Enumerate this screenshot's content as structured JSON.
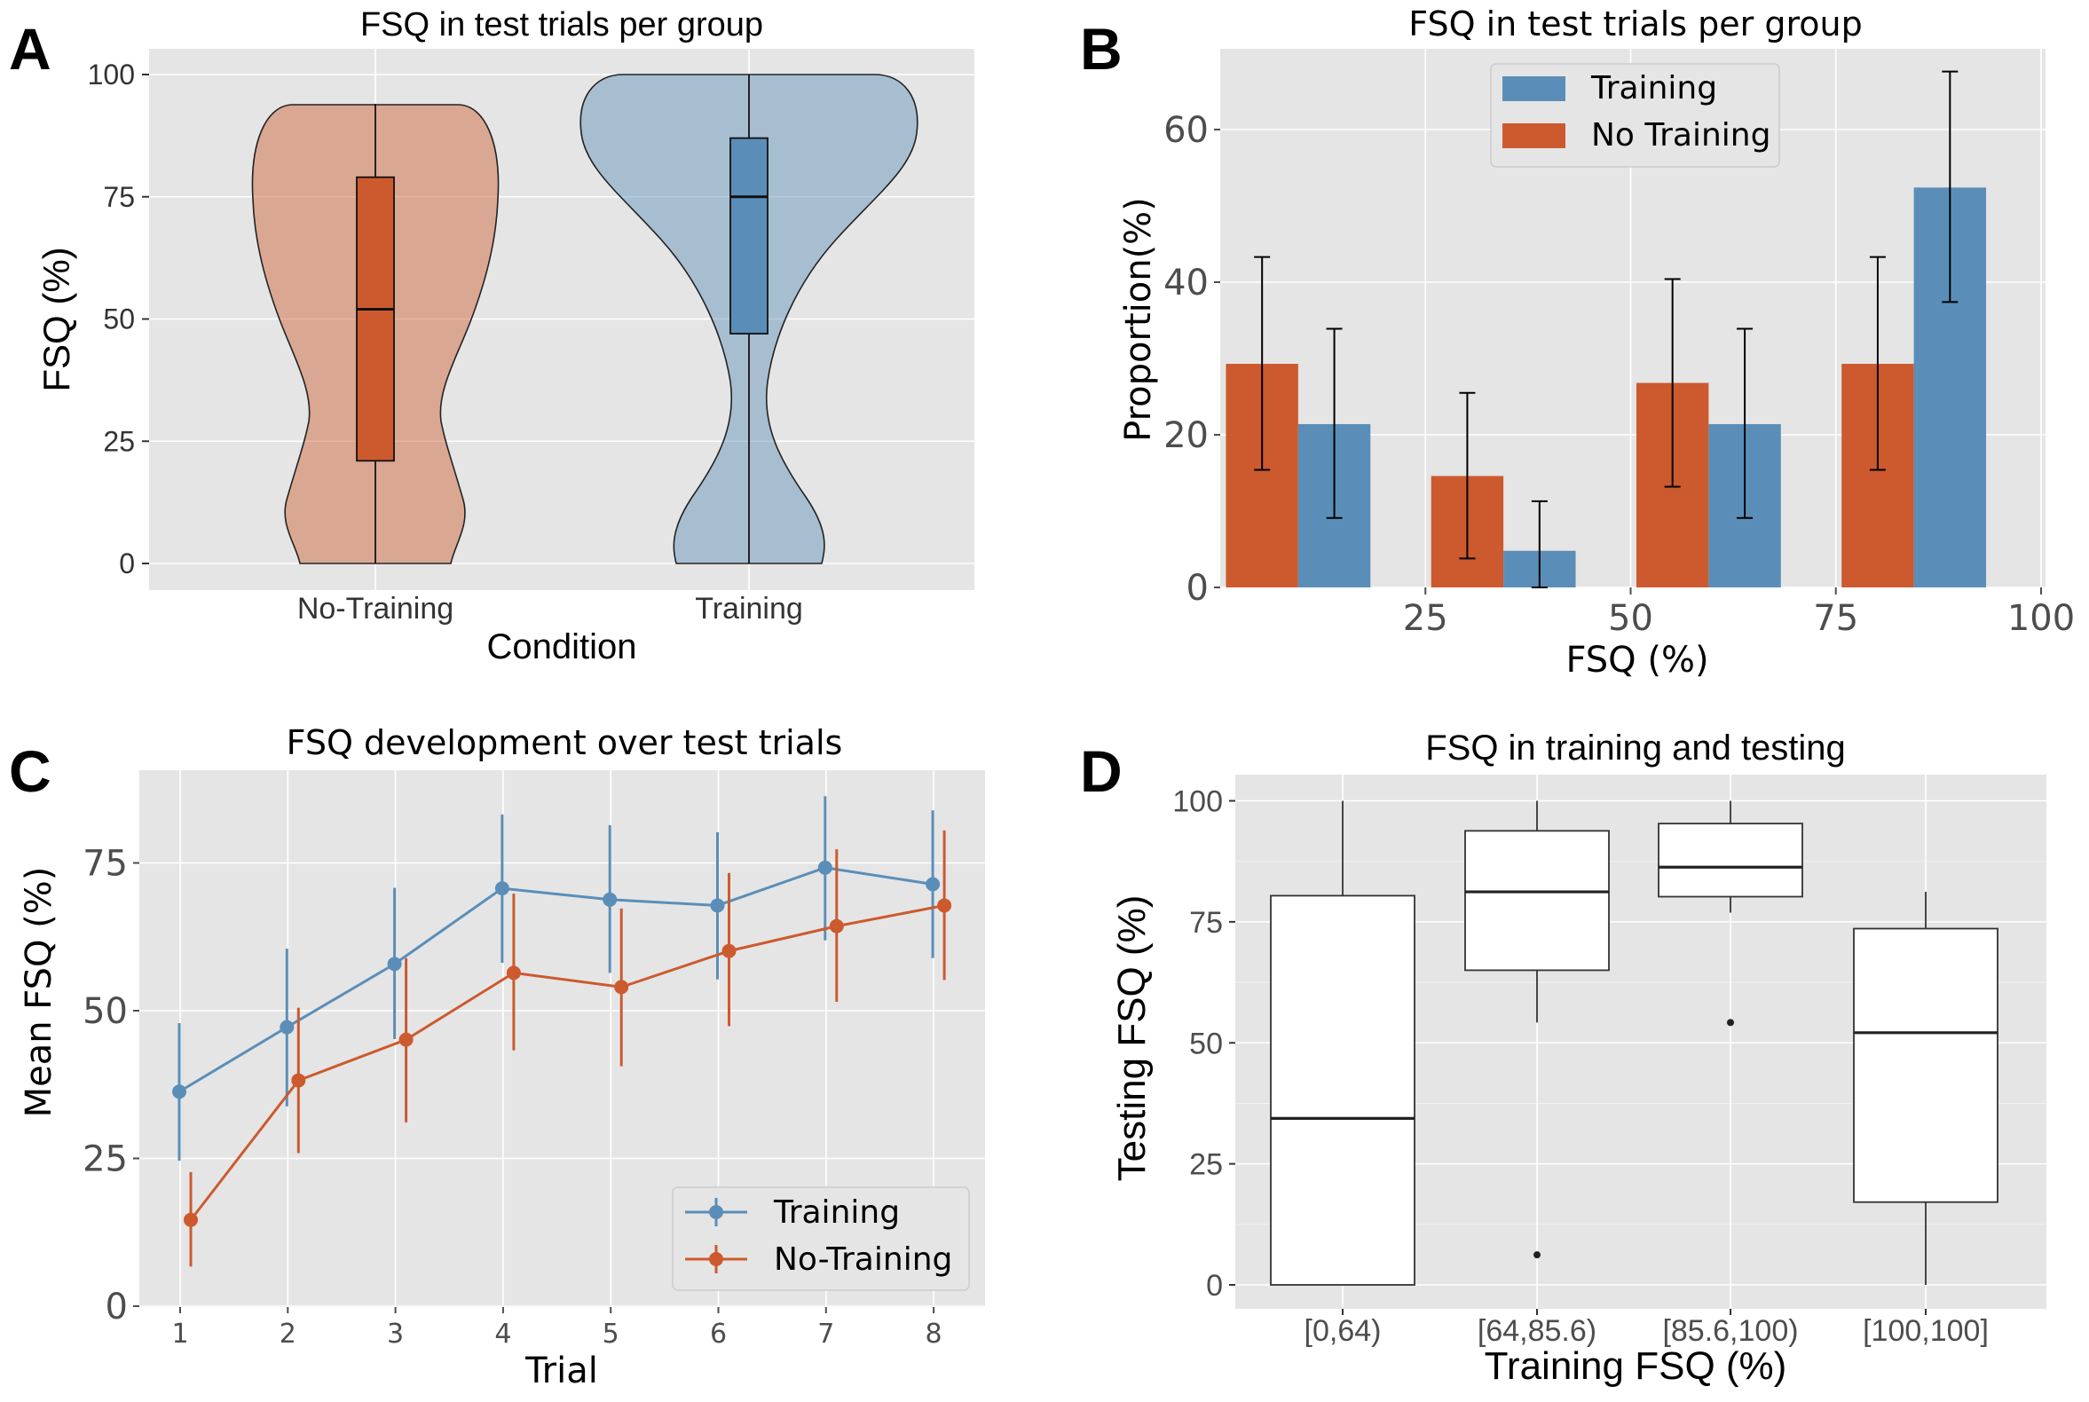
{
  "panel_letters": [
    "A",
    "B",
    "C",
    "D"
  ],
  "colors": {
    "training": "#5a8eb8",
    "no_training": "#cc5a2e",
    "panel_bg": "#e5e5e5"
  },
  "chart_data": [
    {
      "panel": "A",
      "type": "violin",
      "title": "FSQ in test trials per group",
      "xlabel": "Condition",
      "ylabel": "FSQ (%)",
      "ylim": [
        0,
        100
      ],
      "yticks": [
        0,
        25,
        50,
        75,
        100
      ],
      "categories": [
        "No-Training",
        "Training"
      ],
      "boxes": [
        {
          "name": "No-Training",
          "q1": 21,
          "median": 52,
          "q3": 79,
          "min": 0,
          "max": 94
        },
        {
          "name": "Training",
          "q1": 47,
          "median": 75,
          "q3": 87,
          "min": 0,
          "max": 100
        }
      ],
      "grid": true
    },
    {
      "panel": "B",
      "type": "bar",
      "title": "FSQ in test trials per group",
      "xlabel": "FSQ (%)",
      "ylabel": "Proportion(%)",
      "xlim": [
        0,
        100
      ],
      "xticks": [
        25,
        50,
        75,
        100
      ],
      "ylim": [
        0,
        70
      ],
      "yticks": [
        0,
        20,
        40,
        60
      ],
      "legend_position": "top-center",
      "bin_centers": [
        12.5,
        37.5,
        62.5,
        87.5
      ],
      "series": [
        {
          "name": "Training",
          "values": [
            21.4,
            4.8,
            21.4,
            52.4
          ],
          "err_low": [
            9.1,
            0,
            9.1,
            37.4
          ],
          "err_high": [
            33.9,
            11.3,
            33.9,
            67.6
          ]
        },
        {
          "name": "No Training",
          "values": [
            29.3,
            14.6,
            26.8,
            29.3
          ],
          "err_low": [
            15.4,
            3.8,
            13.2,
            15.4
          ],
          "err_high": [
            43.3,
            25.5,
            40.4,
            43.3
          ]
        }
      ],
      "grid": true
    },
    {
      "panel": "C",
      "type": "line",
      "title": "FSQ development over test trials",
      "xlabel": "Trial",
      "ylabel": "Mean FSQ (%)",
      "x": [
        1,
        2,
        3,
        4,
        5,
        6,
        7,
        8
      ],
      "ylim": [
        0,
        85
      ],
      "yticks": [
        0,
        25,
        50,
        75
      ],
      "legend_position": "bottom-right",
      "series": [
        {
          "name": "Training",
          "values": [
            36.3,
            47.2,
            57.9,
            70.7,
            68.8,
            67.8,
            74.2,
            71.4
          ],
          "err_low": [
            24.6,
            33.8,
            45.2,
            58.1,
            56.4,
            55.3,
            61.9,
            58.9
          ],
          "err_high": [
            47.9,
            60.5,
            70.8,
            83.2,
            81.4,
            80.2,
            86.3,
            83.9
          ]
        },
        {
          "name": "No-Training",
          "values": [
            14.6,
            38.2,
            45.1,
            56.4,
            54.0,
            60.1,
            64.3,
            67.8
          ],
          "err_low": [
            6.7,
            25.9,
            31.1,
            43.3,
            40.6,
            47.4,
            51.5,
            55.2
          ],
          "err_high": [
            22.7,
            50.5,
            58.9,
            69.8,
            67.3,
            73.3,
            77.3,
            80.5
          ]
        }
      ],
      "grid": true
    },
    {
      "panel": "D",
      "type": "box",
      "title": "FSQ in training and testing",
      "xlabel": "Training FSQ (%)",
      "ylabel": "Testing FSQ (%)",
      "categories": [
        "[0,64)",
        "[64,85.6)",
        "[85.6,100)",
        "[100,100]"
      ],
      "ylim": [
        0,
        100
      ],
      "yticks": [
        0,
        25,
        50,
        75,
        100
      ],
      "boxes": [
        {
          "q1": 0,
          "median": 34.4,
          "q3": 80.4,
          "whisker_low": 0,
          "whisker_high": 100,
          "outliers": []
        },
        {
          "q1": 65.0,
          "median": 81.2,
          "q3": 93.8,
          "whisker_low": 54.2,
          "whisker_high": 100,
          "outliers": [
            6.2
          ]
        },
        {
          "q1": 80.2,
          "median": 86.3,
          "q3": 95.3,
          "whisker_low": 76.9,
          "whisker_high": 100,
          "outliers": [
            54.2
          ]
        },
        {
          "q1": 17.1,
          "median": 52.1,
          "q3": 73.6,
          "whisker_low": 0,
          "whisker_high": 81.2,
          "outliers": []
        }
      ],
      "grid": true
    }
  ]
}
